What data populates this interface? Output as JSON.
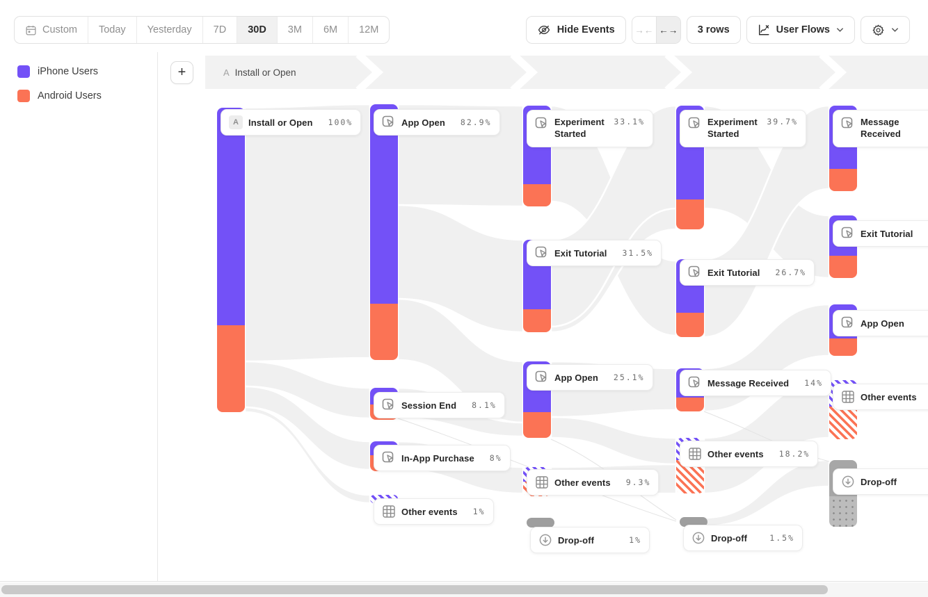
{
  "toolbar": {
    "date_ranges": [
      "Custom",
      "Today",
      "Yesterday",
      "7D",
      "30D",
      "3M",
      "6M",
      "12M"
    ],
    "selected_range": "30D",
    "hide_events_label": "Hide Events",
    "collapse_glyph": "→←",
    "expand_glyph": "←→",
    "rows_label": "3 rows",
    "view_mode_label": "User Flows"
  },
  "legend": {
    "items": [
      {
        "label": "iPhone Users",
        "color": "#7351F7"
      },
      {
        "label": "Android Users",
        "color": "#FB7355"
      }
    ]
  },
  "flow_header": {
    "badge": "A",
    "label": "Install or Open",
    "add_button_glyph": "+"
  },
  "flow": {
    "columns": [
      {
        "nodes": [
          {
            "badge": "A",
            "label": "Install or Open",
            "pct": "100%"
          }
        ]
      },
      {
        "nodes": [
          {
            "label": "App Open",
            "pct": "82.9%"
          },
          {
            "label": "Session End",
            "pct": "8.1%"
          },
          {
            "label": "In-App Purchase",
            "pct": "8%"
          },
          {
            "label": "Other events",
            "pct": "1%"
          }
        ]
      },
      {
        "nodes": [
          {
            "label": "Experiment Started",
            "pct": "33.1%"
          },
          {
            "label": "Exit Tutorial",
            "pct": "31.5%"
          },
          {
            "label": "App Open",
            "pct": "25.1%"
          },
          {
            "label": "Other events",
            "pct": "9.3%"
          },
          {
            "label": "Drop-off",
            "pct": "1%"
          }
        ]
      },
      {
        "nodes": [
          {
            "label": "Experiment Started",
            "pct": "39.7%"
          },
          {
            "label": "Exit Tutorial",
            "pct": "26.7%"
          },
          {
            "label": "Message Received",
            "pct": "14%"
          },
          {
            "label": "Other events",
            "pct": "18.2%"
          },
          {
            "label": "Drop-off",
            "pct": "1.5%"
          }
        ]
      },
      {
        "nodes": [
          {
            "label": "Message Received",
            "pct": ""
          },
          {
            "label": "Exit Tutorial",
            "pct": ""
          },
          {
            "label": "App Open",
            "pct": ""
          },
          {
            "label": "Other events",
            "pct": ""
          },
          {
            "label": "Drop-off",
            "pct": ""
          }
        ]
      }
    ]
  },
  "colors": {
    "iphone_purple": "#7351F7",
    "android_orange": "#FB7355",
    "dropoff_gray": "#9E9E9E",
    "ribbon_gray": "#F0F0F0",
    "band_gray": "#F2F2F2"
  }
}
